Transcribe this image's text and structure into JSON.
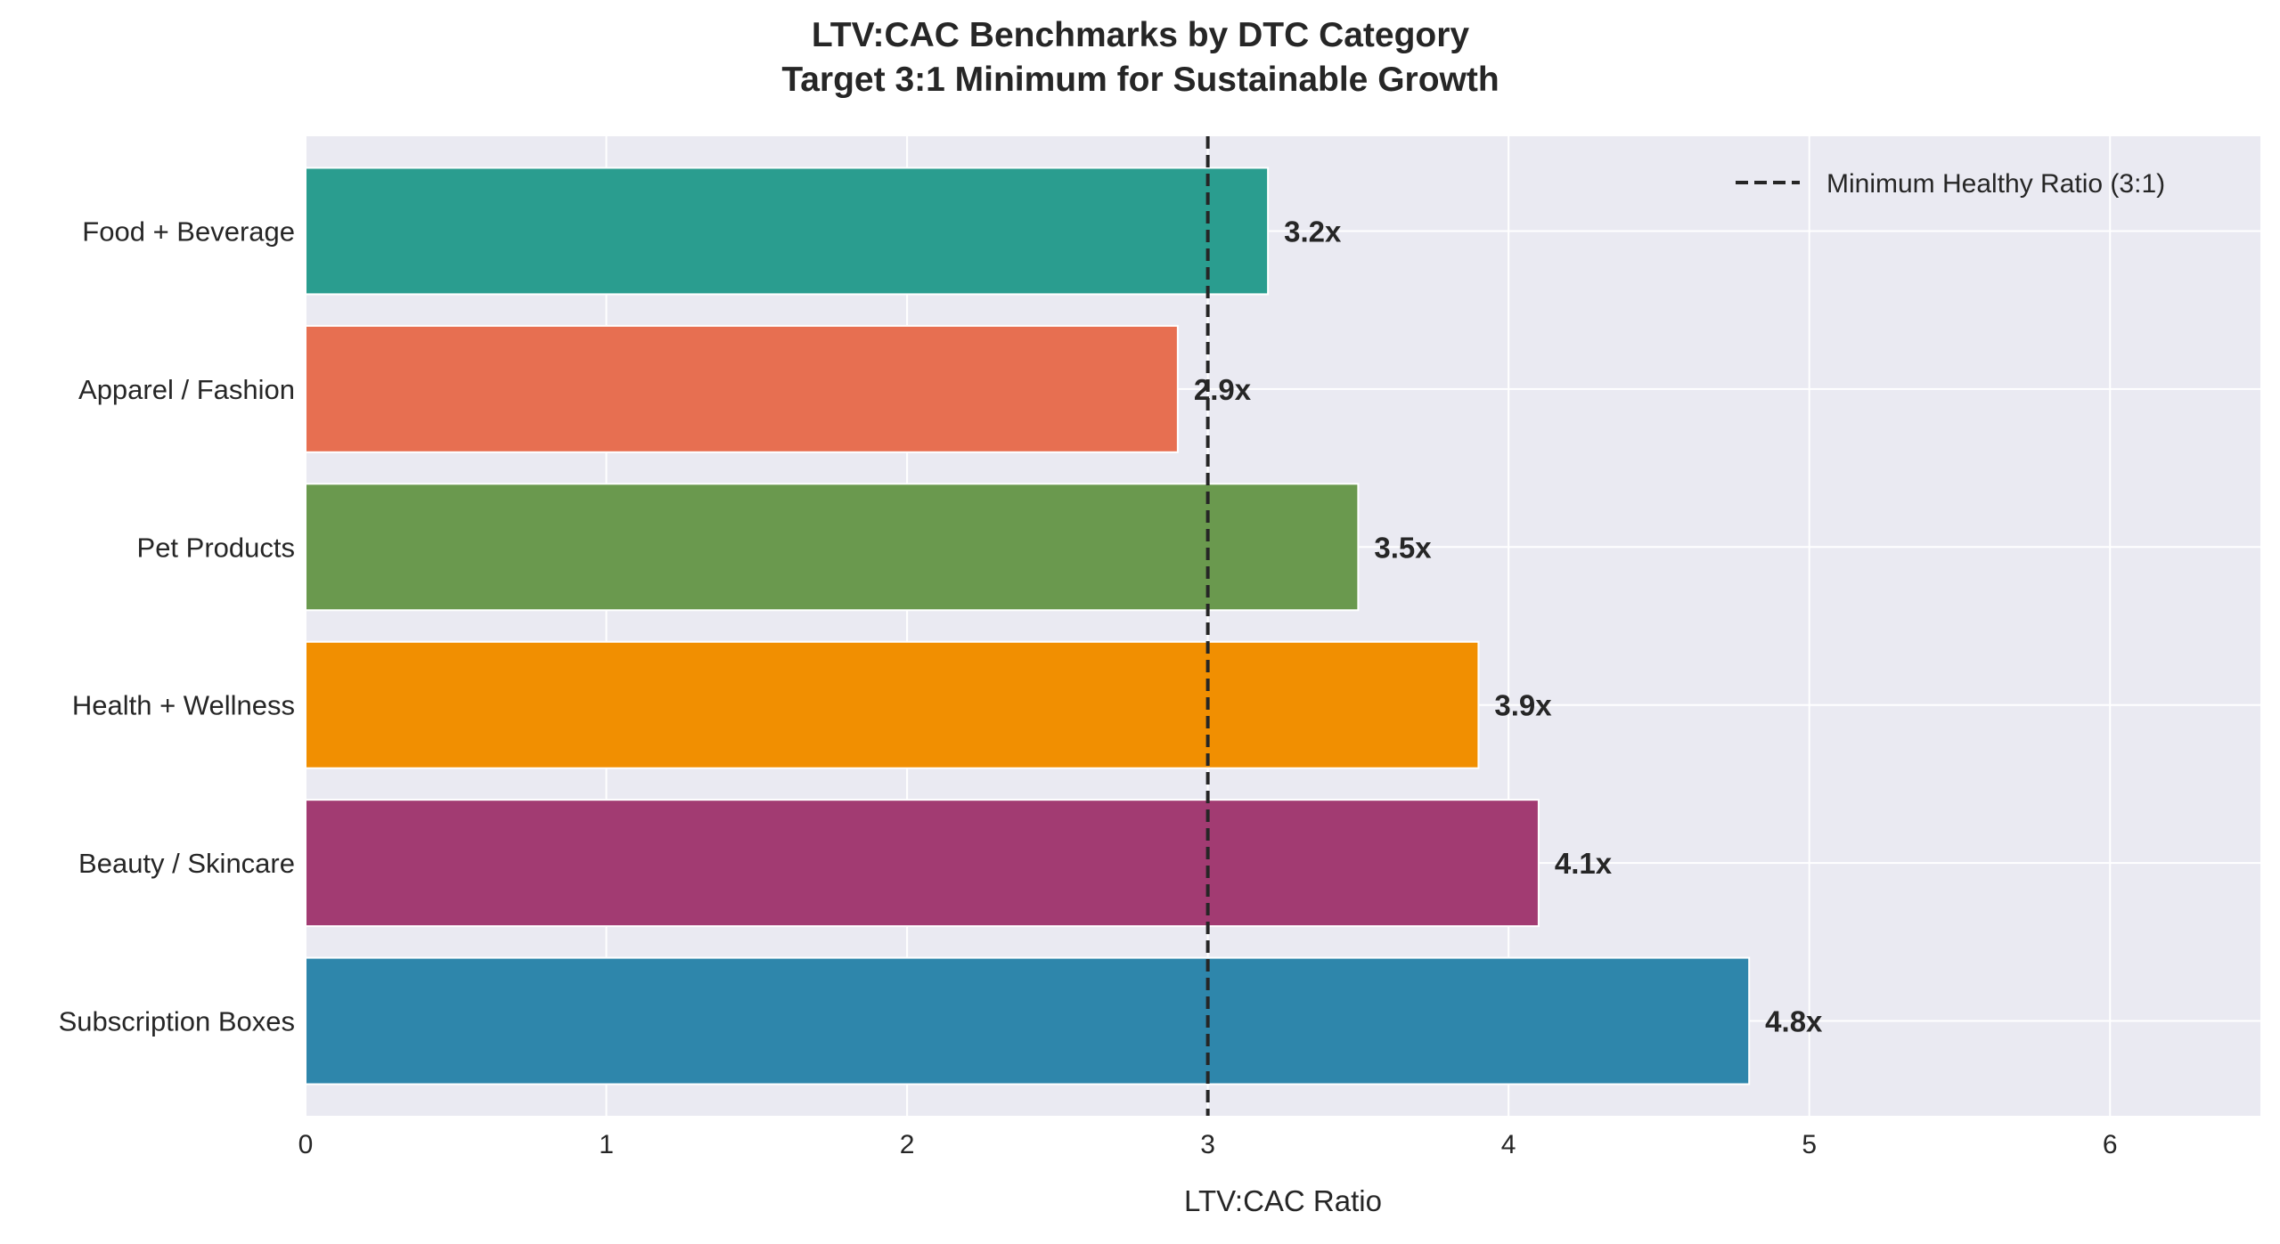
{
  "chart_data": {
    "type": "bar",
    "orientation": "horizontal",
    "title": "LTV:CAC Benchmarks by DTC Category",
    "subtitle": "Target 3:1 Minimum for Sustainable Growth",
    "xlabel": "LTV:CAC Ratio",
    "ylabel": "",
    "xlim": [
      0,
      6.5
    ],
    "xticks": [
      "0",
      "1",
      "2",
      "3",
      "4",
      "5",
      "6"
    ],
    "grid": true,
    "categories": [
      "Subscription Boxes",
      "Beauty / Skincare",
      "Health + Wellness",
      "Pet Products",
      "Apparel / Fashion",
      "Food + Beverage"
    ],
    "values": [
      4.8,
      4.1,
      3.9,
      3.5,
      2.9,
      3.2
    ],
    "data_labels": [
      "4.8x",
      "4.1x",
      "3.9x",
      "3.5x",
      "2.9x",
      "3.2x"
    ],
    "colors": [
      "#2e86ab",
      "#a23b72",
      "#f18f01",
      "#6a994e",
      "#e76f51",
      "#2a9d8f"
    ],
    "reference_line": {
      "value": 3,
      "style": "dashed",
      "color": "#262626",
      "label": "Minimum Healthy Ratio (3:1)"
    },
    "legend_position": "top-right",
    "background": "#eaeaf2"
  }
}
